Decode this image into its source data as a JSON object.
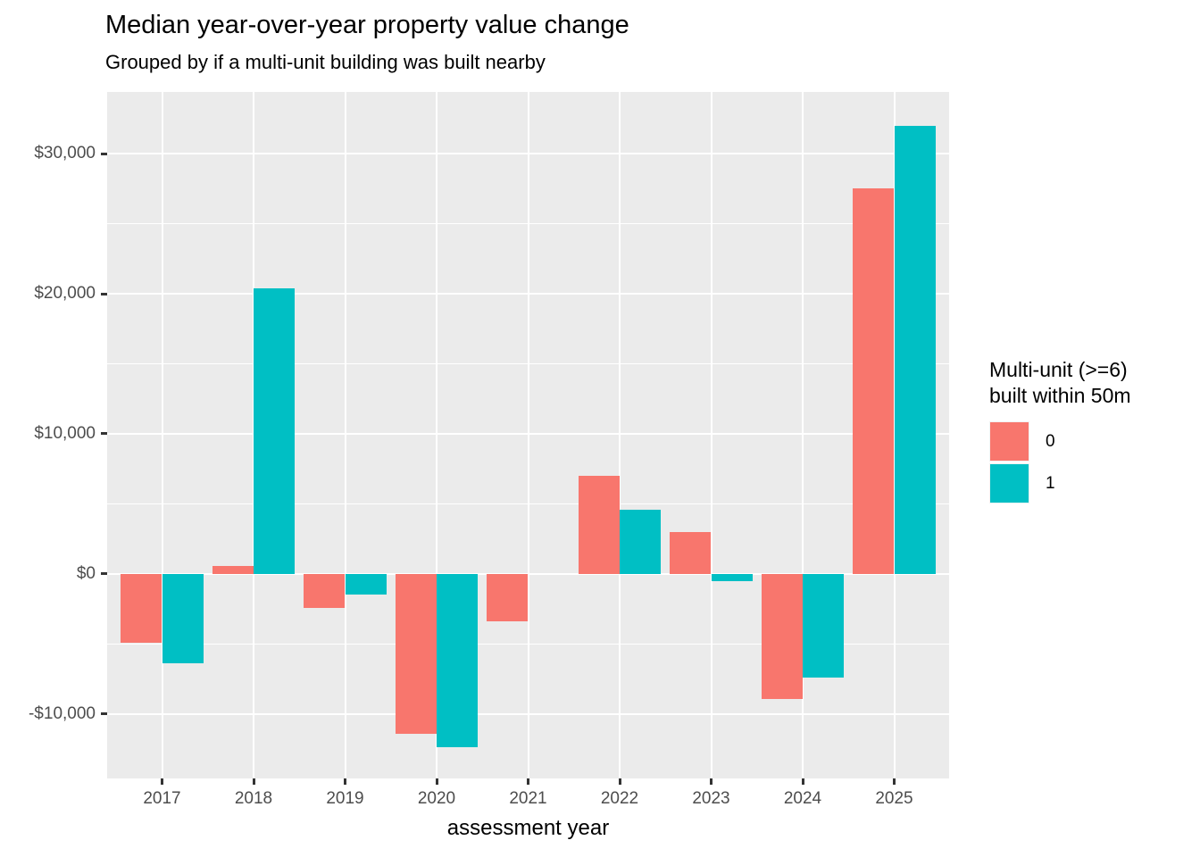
{
  "title": "Median year-over-year property value change",
  "subtitle": "Grouped by if a multi-unit building was built nearby",
  "chart_data": {
    "type": "bar",
    "title": "Median year-over-year property value change",
    "subtitle": "Grouped by if a multi-unit building was built nearby",
    "xlabel": "assessment year",
    "ylabel": "",
    "categories": [
      "2017",
      "2018",
      "2019",
      "2020",
      "2021",
      "2022",
      "2023",
      "2024",
      "2025"
    ],
    "series": [
      {
        "name": "0",
        "color": "#F8766D",
        "values": [
          -4900,
          600,
          -2400,
          -11400,
          -3400,
          7000,
          3000,
          -8900,
          27500
        ]
      },
      {
        "name": "1",
        "color": "#00BFC4",
        "values": [
          -6400,
          20400,
          -1500,
          -12400,
          0,
          4600,
          -500,
          -7400,
          32000
        ]
      }
    ],
    "ylim": [
      -14600,
      34400
    ],
    "y_ticks": [
      {
        "value": -10000,
        "label": "-$10,000"
      },
      {
        "value": 0,
        "label": "$0"
      },
      {
        "value": 10000,
        "label": "$10,000"
      },
      {
        "value": 20000,
        "label": "$20,000"
      },
      {
        "value": 30000,
        "label": "$30,000"
      }
    ],
    "y_minor_ticks": [
      -5000,
      5000,
      15000,
      25000
    ],
    "legend_title": "Multi-unit (>=6) built within 50m",
    "legend_position": "right",
    "grid": true
  },
  "legend": {
    "title_line1": "Multi-unit (>=6)",
    "title_line2": "built within 50m",
    "items": [
      {
        "label": "0",
        "color": "#F8766D"
      },
      {
        "label": "1",
        "color": "#00BFC4"
      }
    ]
  },
  "colors": {
    "background": "#FFFFFF",
    "panel_background": "#EBEBEB",
    "gridline": "#FFFFFF",
    "axis_text": "#4D4D4D",
    "tick_mark": "#333333",
    "title_text": "#000000",
    "series_0": "#F8766D",
    "series_1": "#00BFC4",
    "legend_key_background": "#F2F2F2"
  }
}
